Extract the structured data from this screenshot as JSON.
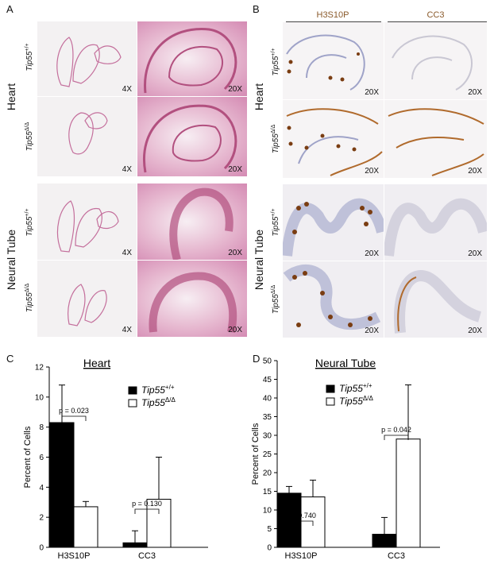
{
  "panels": {
    "a": "A",
    "b": "B",
    "c": "C",
    "d": "D"
  },
  "groups": {
    "heart": "Heart",
    "neural_tube": "Neural Tube"
  },
  "genotypes": {
    "wt_base": "Tip55",
    "wt_sup": "+/+",
    "mut_base": "Tip55",
    "mut_sup": "Δ/Δ"
  },
  "magnifications": {
    "low": "4X",
    "high": "20X"
  },
  "stains": {
    "h3s10p": "H3S10P",
    "cc3": "CC3"
  },
  "colors": {
    "he_tissue": "#d48ab3",
    "dab_brown": "#7a3d12",
    "hematoxylin": "#9fa3c8",
    "bar_wt": "#000000",
    "bar_mut": "#ffffff"
  },
  "chart_data": [
    {
      "type": "bar",
      "title": "Heart",
      "ylabel": "Percent of Cells",
      "xlabel": "",
      "ylim": [
        0,
        12
      ],
      "yticks": [
        0,
        2,
        4,
        6,
        8,
        10,
        12
      ],
      "categories": [
        "H3S10P",
        "CC3"
      ],
      "series": [
        {
          "name_base": "Tip55",
          "name_sup": "+/+",
          "values": [
            8.3,
            0.3
          ],
          "errors": [
            2.5,
            0.8
          ]
        },
        {
          "name_base": "Tip55",
          "name_sup": "Δ/Δ",
          "values": [
            2.7,
            3.2
          ],
          "errors": [
            0.35,
            2.8
          ]
        }
      ],
      "pvalues": [
        "p = 0.023",
        "p = 0.130"
      ],
      "legend": "top-right"
    },
    {
      "type": "bar",
      "title": "Neural Tube",
      "ylabel": "Percent of Cells",
      "xlabel": "",
      "ylim": [
        0,
        50
      ],
      "yticks": [
        0,
        5,
        10,
        15,
        20,
        25,
        30,
        35,
        40,
        45,
        50
      ],
      "categories": [
        "H3S10P",
        "CC3"
      ],
      "series": [
        {
          "name_base": "Tip55",
          "name_sup": "+/+",
          "values": [
            14.5,
            3.5
          ],
          "errors": [
            1.8,
            4.5
          ]
        },
        {
          "name_base": "Tip55",
          "name_sup": "Δ/Δ",
          "values": [
            13.5,
            29.0
          ],
          "errors": [
            4.5,
            14.5
          ]
        }
      ],
      "pvalues": [
        "p = 0.740",
        "p = 0.042"
      ],
      "legend": "top-right"
    }
  ]
}
